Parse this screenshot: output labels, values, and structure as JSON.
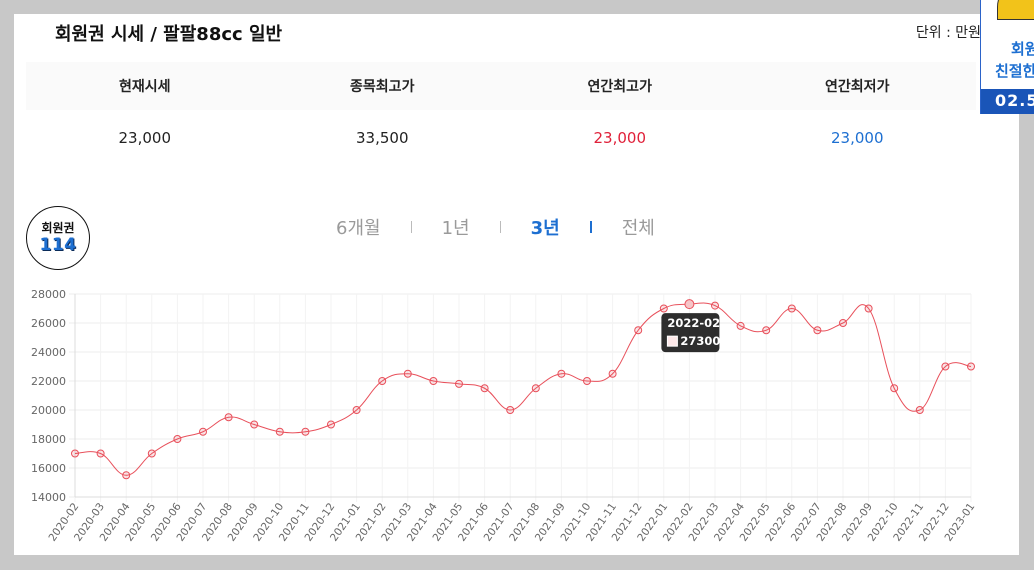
{
  "header": {
    "title": "회원권 시세 / 팔팔88cc 일반",
    "unit_label": "단위 : 만원"
  },
  "summary": {
    "headers": [
      "현재시세",
      "종목최고가",
      "연간최고가",
      "연간최저가"
    ],
    "values": [
      "23,000",
      "33,500",
      "23,000",
      "23,000"
    ],
    "value_colors": [
      "#222222",
      "#222222",
      "#e0213a",
      "#1d6fd1"
    ]
  },
  "logo": {
    "line1": "회원권",
    "line2": "114"
  },
  "tabs": [
    {
      "label": "6개월",
      "active": false
    },
    {
      "label": "1년",
      "active": false
    },
    {
      "label": "3년",
      "active": true
    },
    {
      "label": "전체",
      "active": false
    }
  ],
  "side_banner": {
    "line1": "회원",
    "line2": "친절한",
    "line3": "02.5"
  },
  "chart_data": {
    "type": "line",
    "title": "",
    "xlabel": "",
    "ylabel": "",
    "ylim": [
      14000,
      28000
    ],
    "yticks": [
      14000,
      16000,
      18000,
      20000,
      22000,
      24000,
      26000,
      28000
    ],
    "grid": true,
    "color": "#e8505b",
    "categories": [
      "2020-02",
      "2020-03",
      "2020-04",
      "2020-05",
      "2020-06",
      "2020-07",
      "2020-08",
      "2020-09",
      "2020-10",
      "2020-11",
      "2020-12",
      "2021-01",
      "2021-02",
      "2021-03",
      "2021-04",
      "2021-05",
      "2021-06",
      "2021-07",
      "2021-08",
      "2021-09",
      "2021-10",
      "2021-11",
      "2021-12",
      "2022-01",
      "2022-02",
      "2022-03",
      "2022-04",
      "2022-05",
      "2022-06",
      "2022-07",
      "2022-08",
      "2022-09",
      "2022-10",
      "2022-11",
      "2022-12",
      "2023-01"
    ],
    "values": [
      17000,
      17000,
      15500,
      17000,
      18000,
      18500,
      19500,
      19000,
      18500,
      18500,
      19000,
      20000,
      22000,
      22500,
      22000,
      21800,
      21500,
      20000,
      21500,
      22500,
      22000,
      22500,
      25500,
      27000,
      27300,
      27200,
      25800,
      25500,
      27000,
      25500,
      26000,
      27000,
      21500,
      20000,
      23000,
      23000
    ],
    "tooltip": {
      "label": "2022-02",
      "value": "27300"
    }
  }
}
